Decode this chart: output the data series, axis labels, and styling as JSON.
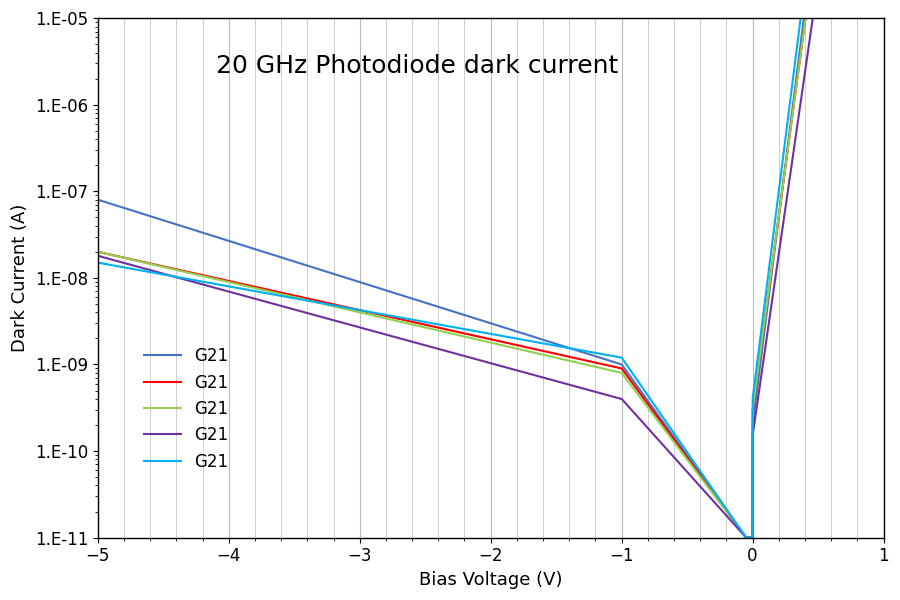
{
  "title": "20 GHz Photodiode dark current",
  "xlabel": "Bias Voltage (V)",
  "ylabel": "Dark Current (A)",
  "xlim": [
    -5,
    1
  ],
  "ylim": [
    1e-11,
    1e-05
  ],
  "yticks_exp": [
    -11,
    -10,
    -9,
    -8,
    -7,
    -6,
    -5
  ],
  "xticks": [
    -5,
    -4,
    -3,
    -2,
    -1,
    0,
    1
  ],
  "legend_labels": [
    "G21",
    "G21",
    "G21",
    "G21",
    "G21"
  ],
  "colors": [
    "#4472C4",
    "#FF0000",
    "#92D050",
    "#7030A0",
    "#00B0F0"
  ],
  "title_fontsize": 18,
  "axis_label_fontsize": 13,
  "tick_fontsize": 12,
  "legend_fontsize": 12,
  "background_color": "#FFFFFF",
  "grid_color": "#BBBBBB",
  "linewidth": 1.5
}
